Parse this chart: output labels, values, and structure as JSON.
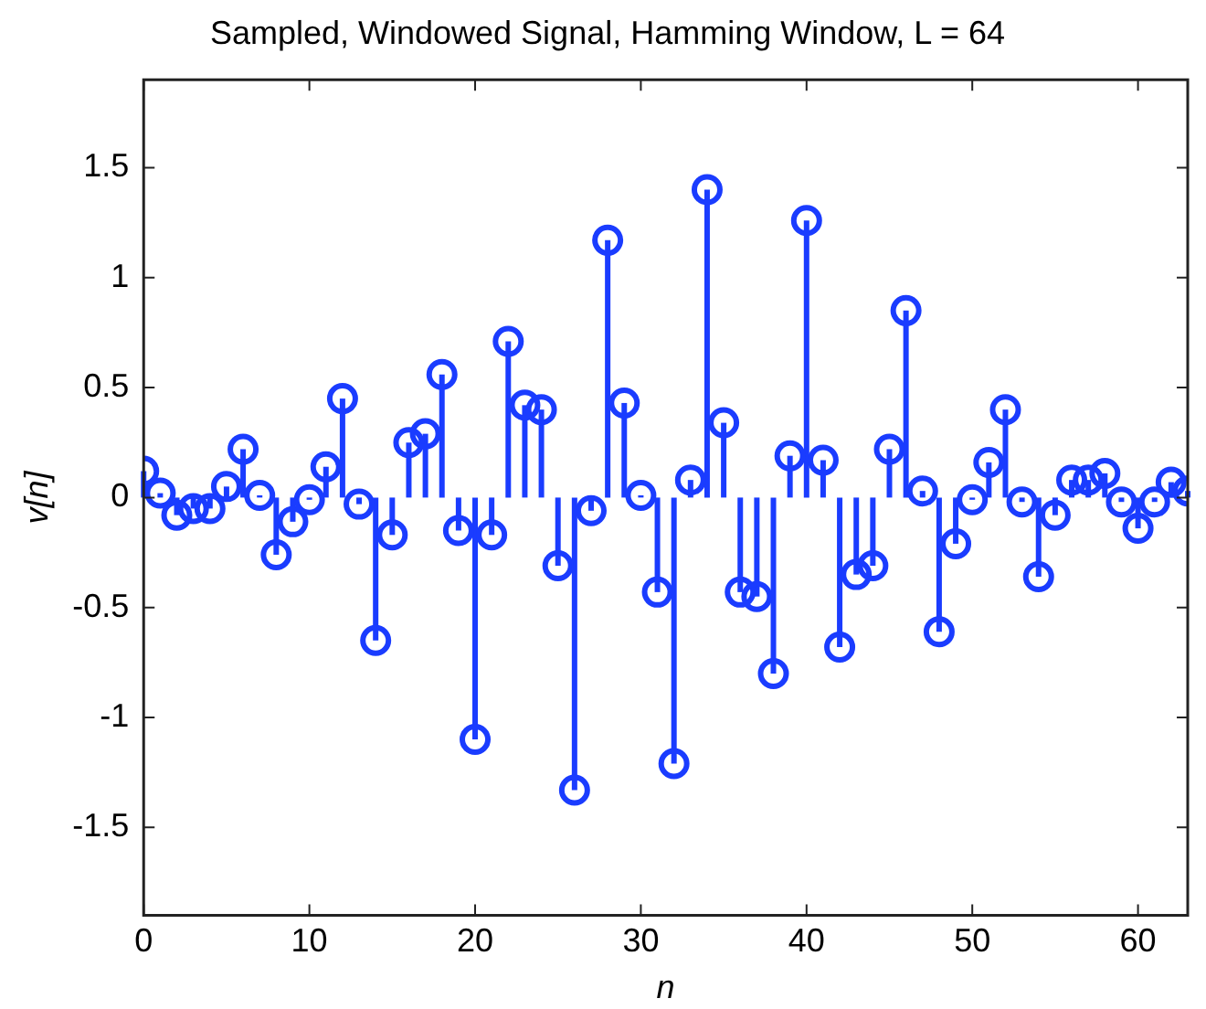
{
  "chart_data": {
    "type": "lollipop",
    "title": "Sampled, Windowed Signal, Hamming Window, L = 64",
    "xlabel": "n",
    "ylabel": "v[n]",
    "x": [
      0,
      1,
      2,
      3,
      4,
      5,
      6,
      7,
      8,
      9,
      10,
      11,
      12,
      13,
      14,
      15,
      16,
      17,
      18,
      19,
      20,
      21,
      22,
      23,
      24,
      25,
      26,
      27,
      28,
      29,
      30,
      31,
      32,
      33,
      34,
      35,
      36,
      37,
      38,
      39,
      40,
      41,
      42,
      43,
      44,
      45,
      46,
      47,
      48,
      49,
      50,
      51,
      52,
      53,
      54,
      55,
      56,
      57,
      58,
      59,
      60,
      61,
      62,
      63
    ],
    "values": [
      0.12,
      0.02,
      -0.08,
      -0.05,
      -0.05,
      0.05,
      0.22,
      0.01,
      -0.26,
      -0.11,
      -0.01,
      0.14,
      0.45,
      -0.03,
      -0.65,
      -0.17,
      0.25,
      0.29,
      0.56,
      -0.15,
      -1.1,
      -0.17,
      0.71,
      0.42,
      0.4,
      -0.31,
      -1.33,
      -0.06,
      1.17,
      0.43,
      0.01,
      -0.43,
      -1.21,
      0.08,
      1.4,
      0.34,
      -0.43,
      -0.45,
      -0.8,
      0.19,
      1.26,
      0.17,
      -0.68,
      -0.35,
      -0.31,
      0.22,
      0.85,
      0.03,
      -0.61,
      -0.21,
      -0.01,
      0.16,
      0.4,
      -0.02,
      -0.36,
      -0.08,
      0.08,
      0.08,
      0.11,
      -0.02,
      -0.14,
      -0.02,
      0.07,
      0.03
    ],
    "color": "#1a3cff",
    "marker": "circle",
    "xlim": [
      0,
      63
    ],
    "xticks": [
      0,
      10,
      20,
      30,
      40,
      50,
      60
    ],
    "ylim": [
      -1.9,
      1.9
    ],
    "yticks": [
      -1.5,
      -1,
      -0.5,
      0,
      0.5,
      1,
      1.5
    ],
    "grid": false,
    "legend": false
  }
}
